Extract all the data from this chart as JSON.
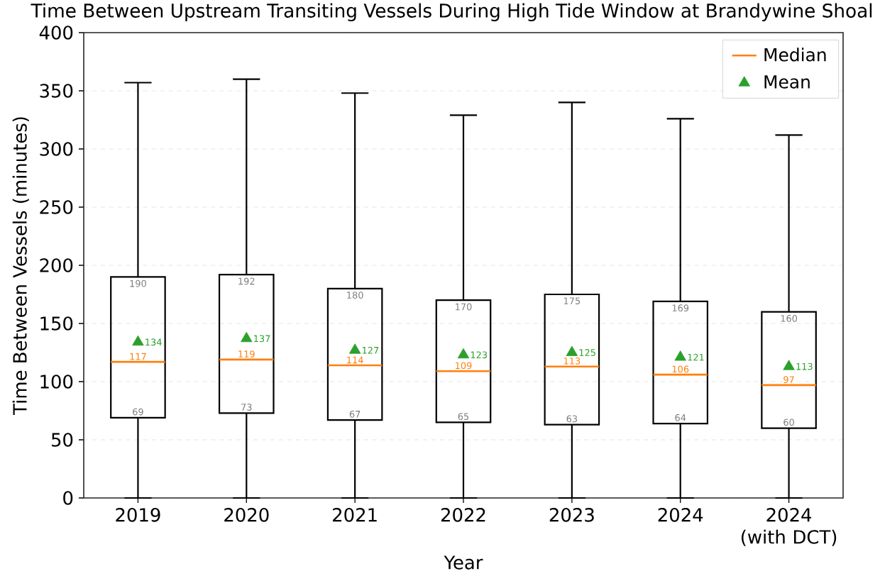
{
  "chart_data": {
    "type": "box",
    "title": "Time Between Upstream Transiting Vessels During High Tide Window at Brandywine Shoal",
    "xlabel": "Year",
    "ylabel": "Time Between Vessels (minutes)",
    "categories": [
      "2019",
      "2020",
      "2021",
      "2022",
      "2023",
      "2024",
      "2024 (with DCT)"
    ],
    "series": [
      {
        "name": "Median",
        "type": "box",
        "color": "#ff7f0e",
        "boxes": [
          {
            "low": 0,
            "q1": 69,
            "median": 117,
            "q3": 190,
            "high": 357
          },
          {
            "low": 0,
            "q1": 73,
            "median": 119,
            "q3": 192,
            "high": 360
          },
          {
            "low": 0,
            "q1": 67,
            "median": 114,
            "q3": 180,
            "high": 348
          },
          {
            "low": 0,
            "q1": 65,
            "median": 109,
            "q3": 170,
            "high": 329
          },
          {
            "low": 0,
            "q1": 63,
            "median": 113,
            "q3": 175,
            "high": 340
          },
          {
            "low": 0,
            "q1": 64,
            "median": 106,
            "q3": 169,
            "high": 326
          },
          {
            "low": 0,
            "q1": 60,
            "median": 97,
            "q3": 160,
            "high": 312
          }
        ]
      },
      {
        "name": "Mean",
        "type": "scatter",
        "color": "#2ca02c",
        "marker": "triangle",
        "values": [
          134,
          137,
          127,
          123,
          125,
          121,
          113
        ]
      }
    ],
    "annotations": [
      {
        "text": "190",
        "x": "2019",
        "y": 190
      },
      {
        "text": "117",
        "x": "2019",
        "y": 117
      },
      {
        "text": "69",
        "x": "2019",
        "y": 69
      },
      {
        "text": "192",
        "x": "2020",
        "y": 192
      },
      {
        "text": "119",
        "x": "2020",
        "y": 119
      },
      {
        "text": "73",
        "x": "2020",
        "y": 73
      },
      {
        "text": "180",
        "x": "2021",
        "y": 180
      },
      {
        "text": "114",
        "x": "2021",
        "y": 114
      },
      {
        "text": "67",
        "x": "2021",
        "y": 67
      },
      {
        "text": "170",
        "x": "2022",
        "y": 170
      },
      {
        "text": "109",
        "x": "2022",
        "y": 109
      },
      {
        "text": "65",
        "x": "2022",
        "y": 65
      },
      {
        "text": "175",
        "x": "2023",
        "y": 175
      },
      {
        "text": "113",
        "x": "2023",
        "y": 113
      },
      {
        "text": "63",
        "x": "2023",
        "y": 63
      },
      {
        "text": "169",
        "x": "2024",
        "y": 169
      },
      {
        "text": "106",
        "x": "2024",
        "y": 106
      },
      {
        "text": "64",
        "x": "2024",
        "y": 64
      },
      {
        "text": "160",
        "x": "2024 (with DCT)",
        "y": 160
      },
      {
        "text": "97",
        "x": "2024 (with DCT)",
        "y": 97
      },
      {
        "text": "60",
        "x": "2024 (with DCT)",
        "y": 60
      }
    ],
    "ylim": [
      0,
      400
    ],
    "yticks": [
      0,
      50,
      100,
      150,
      200,
      250,
      300,
      350,
      400
    ],
    "grid": "y",
    "legend": "top right",
    "data_labels": true
  }
}
